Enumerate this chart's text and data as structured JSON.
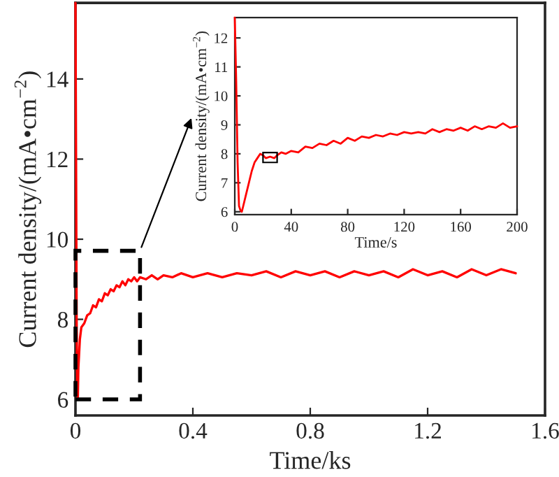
{
  "chart_data": [
    {
      "type": "line",
      "xlabel": "Time/ks",
      "ylabel": "Current density/(mA•cm$^{−2}$)",
      "xlim": [
        0,
        1.6
      ],
      "ylim": [
        5.6,
        15.9
      ],
      "xticks": [
        0,
        0.4,
        0.8,
        1.2,
        1.6
      ],
      "yticks": [
        6,
        8,
        10,
        12,
        14
      ],
      "grid": false,
      "series": [
        {
          "color": "#ff0000",
          "x": [
            0,
            0.002,
            0.004,
            0.006,
            0.008,
            0.01,
            0.015,
            0.02,
            0.03,
            0.04,
            0.05,
            0.06,
            0.07,
            0.08,
            0.09,
            0.1,
            0.11,
            0.12,
            0.13,
            0.14,
            0.15,
            0.16,
            0.17,
            0.18,
            0.19,
            0.2,
            0.21,
            0.22,
            0.24,
            0.26,
            0.28,
            0.3,
            0.33,
            0.36,
            0.4,
            0.45,
            0.5,
            0.55,
            0.6,
            0.65,
            0.7,
            0.75,
            0.8,
            0.85,
            0.9,
            0.95,
            1.0,
            1.05,
            1.1,
            1.15,
            1.2,
            1.25,
            1.3,
            1.35,
            1.4,
            1.45,
            1.5
          ],
          "values": [
            15.9,
            12,
            8,
            6.2,
            6.0,
            6.8,
            7.5,
            7.8,
            7.9,
            8.1,
            8.15,
            8.35,
            8.3,
            8.5,
            8.45,
            8.65,
            8.6,
            8.75,
            8.7,
            8.85,
            8.8,
            8.95,
            8.85,
            9.0,
            8.95,
            9.05,
            8.95,
            9.05,
            9.0,
            9.1,
            9.0,
            9.1,
            9.05,
            9.15,
            9.05,
            9.15,
            9.05,
            9.15,
            9.1,
            9.2,
            9.05,
            9.2,
            9.1,
            9.2,
            9.05,
            9.2,
            9.1,
            9.2,
            9.05,
            9.25,
            9.1,
            9.2,
            9.05,
            9.25,
            9.1,
            9.25,
            9.15
          ]
        }
      ]
    },
    {
      "type": "line",
      "xlabel": "Time/s",
      "ylabel": "Current density/(mA•cm$^{−2}$)",
      "xlim": [
        0,
        200
      ],
      "ylim": [
        5.9,
        12.7
      ],
      "xticks": [
        0,
        40,
        80,
        120,
        160,
        200
      ],
      "yticks": [
        6,
        7,
        8,
        9,
        10,
        11,
        12
      ],
      "grid": false,
      "series": [
        {
          "color": "#ff0000",
          "x": [
            0,
            1,
            2,
            3,
            4,
            5,
            6,
            8,
            10,
            12,
            14,
            16,
            18,
            20,
            22,
            25,
            28,
            30,
            33,
            36,
            40,
            45,
            50,
            55,
            60,
            65,
            70,
            75,
            80,
            85,
            90,
            95,
            100,
            105,
            110,
            115,
            120,
            125,
            130,
            135,
            140,
            145,
            150,
            155,
            160,
            165,
            170,
            175,
            180,
            185,
            190,
            195,
            200
          ],
          "values": [
            12.7,
            10.5,
            7.7,
            6.2,
            6.05,
            6.0,
            6.2,
            6.6,
            7.0,
            7.4,
            7.7,
            7.85,
            8.0,
            7.95,
            7.85,
            7.9,
            7.85,
            7.95,
            8.05,
            8.0,
            8.1,
            8.05,
            8.25,
            8.2,
            8.35,
            8.3,
            8.45,
            8.35,
            8.55,
            8.45,
            8.6,
            8.55,
            8.65,
            8.6,
            8.7,
            8.65,
            8.75,
            8.7,
            8.75,
            8.7,
            8.85,
            8.75,
            8.85,
            8.8,
            8.9,
            8.8,
            8.95,
            8.85,
            8.95,
            8.9,
            9.05,
            8.9,
            8.95
          ]
        }
      ]
    }
  ]
}
